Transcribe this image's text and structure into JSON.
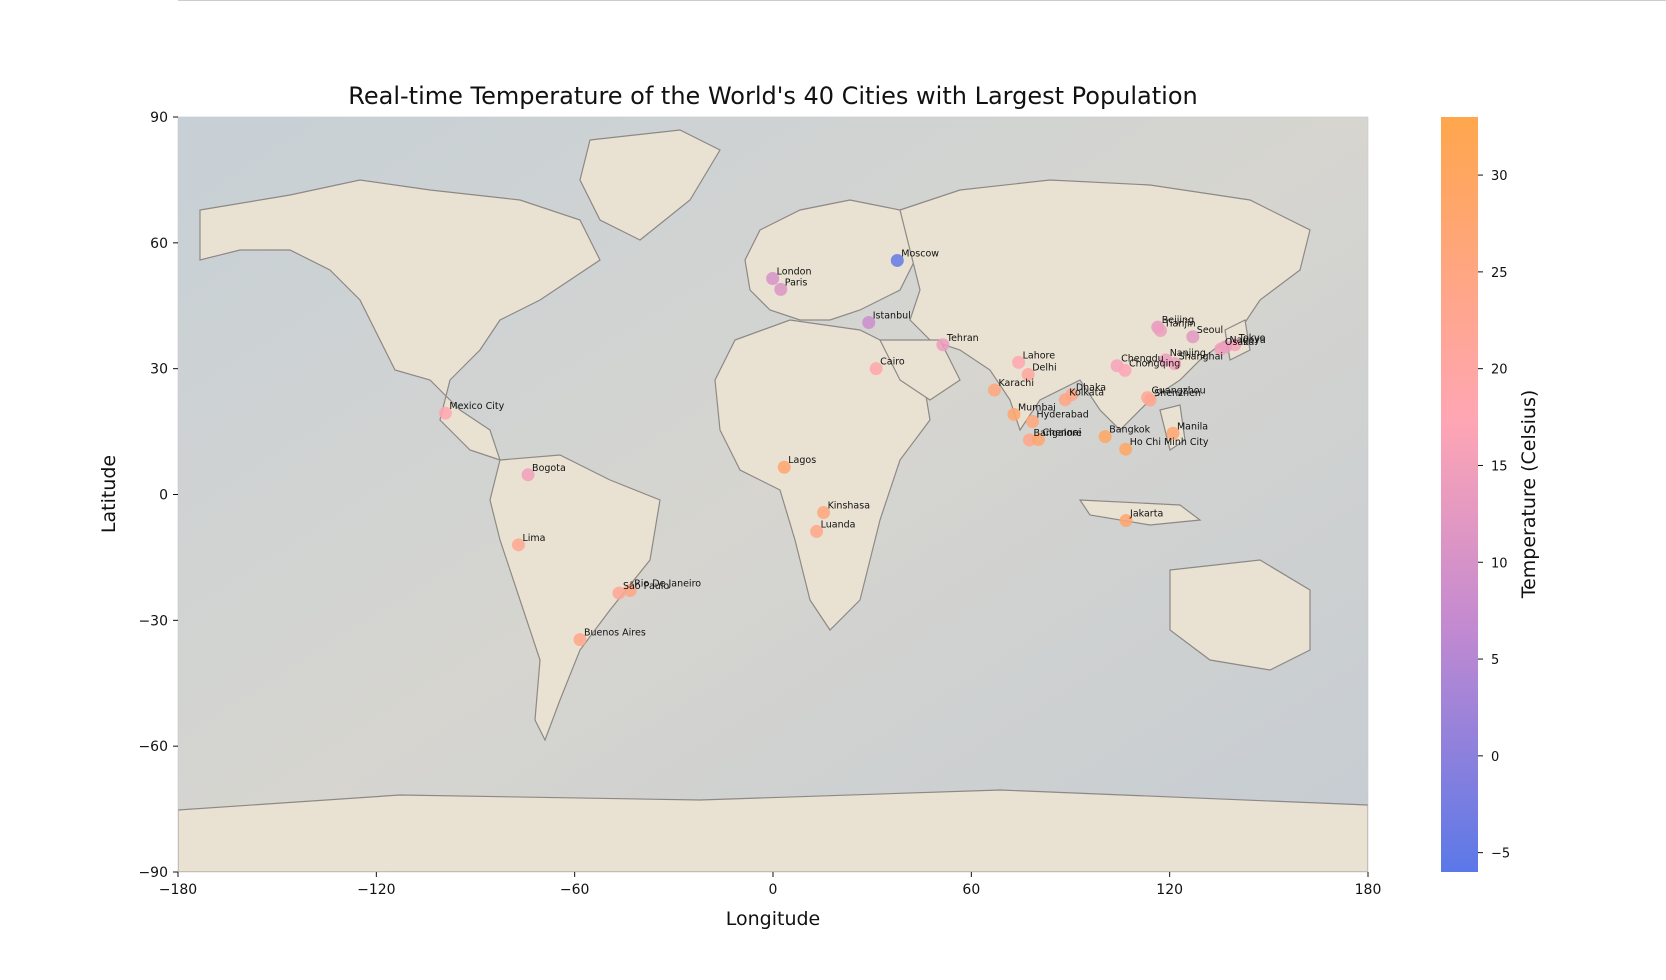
{
  "chart_data": {
    "type": "scatter",
    "title": "Real-time Temperature of the World's 40 Cities with Largest Population",
    "xlabel": "Longitude",
    "ylabel": "Latitude",
    "xlim": [
      -180,
      180
    ],
    "ylim": [
      -90,
      90
    ],
    "x_ticks": [
      -180,
      -120,
      -60,
      0,
      60,
      120,
      180
    ],
    "y_ticks": [
      -90,
      -60,
      -30,
      0,
      30,
      60,
      90
    ],
    "x_tick_labels": [
      "−180",
      "−120",
      "−60",
      "0",
      "60",
      "120",
      "180"
    ],
    "y_tick_labels": [
      "−90",
      "−60",
      "−30",
      "0",
      "30",
      "60",
      "90"
    ],
    "background": "world-map",
    "colorbar": {
      "label": "Temperature (Celsius)",
      "range": [
        -6,
        33
      ],
      "ticks": [
        -5,
        0,
        5,
        10,
        15,
        20,
        25,
        30
      ],
      "tick_labels": [
        "−5",
        "0",
        "5",
        "10",
        "15",
        "20",
        "25",
        "30"
      ],
      "colors": [
        "#5b78e8",
        "#c48ad0",
        "#ffa6b4",
        "#ffa64d"
      ]
    },
    "points": [
      {
        "name": "Moscow",
        "lon": 37.6,
        "lat": 55.8,
        "temp": -5
      },
      {
        "name": "London",
        "lon": -0.1,
        "lat": 51.5,
        "temp": 10
      },
      {
        "name": "Paris",
        "lon": 2.35,
        "lat": 48.9,
        "temp": 11
      },
      {
        "name": "Istanbul",
        "lon": 28.97,
        "lat": 41.0,
        "temp": 8
      },
      {
        "name": "Tehran",
        "lon": 51.4,
        "lat": 35.7,
        "temp": 14
      },
      {
        "name": "Cairo",
        "lon": 31.2,
        "lat": 30.0,
        "temp": 19
      },
      {
        "name": "Lahore",
        "lon": 74.3,
        "lat": 31.5,
        "temp": 18
      },
      {
        "name": "Delhi",
        "lon": 77.2,
        "lat": 28.6,
        "temp": 21
      },
      {
        "name": "Karachi",
        "lon": 67.0,
        "lat": 24.9,
        "temp": 26
      },
      {
        "name": "Mumbai",
        "lon": 72.9,
        "lat": 19.1,
        "temp": 28
      },
      {
        "name": "Hyderabad",
        "lon": 78.5,
        "lat": 17.4,
        "temp": 26
      },
      {
        "name": "Bangalore",
        "lon": 77.6,
        "lat": 13.0,
        "temp": 24
      },
      {
        "name": "Chennai",
        "lon": 80.3,
        "lat": 13.1,
        "temp": 28
      },
      {
        "name": "Dhaka",
        "lon": 90.4,
        "lat": 23.8,
        "temp": 24
      },
      {
        "name": "Kolkata",
        "lon": 88.4,
        "lat": 22.6,
        "temp": 25
      },
      {
        "name": "Beijing",
        "lon": 116.4,
        "lat": 39.9,
        "temp": 13
      },
      {
        "name": "Tianjin",
        "lon": 117.2,
        "lat": 39.1,
        "temp": 14
      },
      {
        "name": "Seoul",
        "lon": 127.0,
        "lat": 37.6,
        "temp": 12
      },
      {
        "name": "Osaka",
        "lon": 135.5,
        "lat": 34.7,
        "temp": 15
      },
      {
        "name": "Tokyo",
        "lon": 139.7,
        "lat": 35.7,
        "temp": 16
      },
      {
        "name": "Nagoya",
        "lon": 136.9,
        "lat": 35.2,
        "temp": 14
      },
      {
        "name": "Nanjing",
        "lon": 118.8,
        "lat": 32.1,
        "temp": 14
      },
      {
        "name": "Shanghai",
        "lon": 121.5,
        "lat": 31.2,
        "temp": 15
      },
      {
        "name": "Chengdu",
        "lon": 104.1,
        "lat": 30.7,
        "temp": 16
      },
      {
        "name": "Chongqing",
        "lon": 106.5,
        "lat": 29.6,
        "temp": 17
      },
      {
        "name": "Guangzhou",
        "lon": 113.3,
        "lat": 23.1,
        "temp": 22
      },
      {
        "name": "Shenzhen",
        "lon": 114.1,
        "lat": 22.5,
        "temp": 23
      },
      {
        "name": "Bangkok",
        "lon": 100.5,
        "lat": 13.8,
        "temp": 30
      },
      {
        "name": "Manila",
        "lon": 121.0,
        "lat": 14.6,
        "temp": 28
      },
      {
        "name": "Ho Chi Minh City",
        "lon": 106.7,
        "lat": 10.8,
        "temp": 30
      },
      {
        "name": "Jakarta",
        "lon": 106.8,
        "lat": -6.2,
        "temp": 28
      },
      {
        "name": "Lagos",
        "lon": 3.4,
        "lat": 6.5,
        "temp": 28
      },
      {
        "name": "Kinshasa",
        "lon": 15.3,
        "lat": -4.3,
        "temp": 26
      },
      {
        "name": "Luanda",
        "lon": 13.2,
        "lat": -8.8,
        "temp": 24
      },
      {
        "name": "Mexico City",
        "lon": -99.1,
        "lat": 19.4,
        "temp": 18
      },
      {
        "name": "Bogota",
        "lon": -74.1,
        "lat": 4.7,
        "temp": 15
      },
      {
        "name": "Lima",
        "lon": -77.0,
        "lat": -12.0,
        "temp": 23
      },
      {
        "name": "Rio De Janeiro",
        "lon": -43.2,
        "lat": -22.9,
        "temp": 25
      },
      {
        "name": "São Paulo",
        "lon": -46.6,
        "lat": -23.5,
        "temp": 22
      },
      {
        "name": "Buenos Aires",
        "lon": -58.4,
        "lat": -34.6,
        "temp": 24
      }
    ]
  }
}
